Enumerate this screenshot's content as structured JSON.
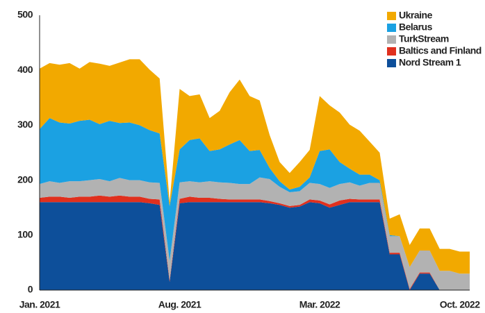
{
  "chart_data": {
    "type": "stacked_area",
    "categories": [
      "Jan. 2021",
      null,
      null,
      null,
      null,
      null,
      null,
      null,
      null,
      null,
      null,
      null,
      null,
      null,
      "Aug. 2021",
      null,
      null,
      null,
      null,
      null,
      null,
      null,
      null,
      null,
      null,
      null,
      null,
      null,
      "Mar. 2022",
      null,
      null,
      null,
      null,
      null,
      null,
      null,
      null,
      null,
      null,
      null,
      null,
      null,
      "Oct. 2022",
      null
    ],
    "series": [
      {
        "name": "Nord Stream 1",
        "color": "#0d4f9a",
        "values": [
          160,
          160,
          160,
          160,
          160,
          160,
          160,
          160,
          160,
          160,
          160,
          158,
          155,
          15,
          158,
          160,
          160,
          160,
          160,
          160,
          160,
          160,
          160,
          158,
          155,
          150,
          152,
          160,
          158,
          150,
          155,
          160,
          160,
          160,
          160,
          65,
          65,
          0,
          30,
          30,
          0,
          0,
          0,
          0
        ]
      },
      {
        "name": "Baltics and Finland",
        "color": "#e0301e",
        "values": [
          8,
          10,
          10,
          8,
          10,
          10,
          12,
          10,
          12,
          10,
          10,
          8,
          10,
          3,
          8,
          10,
          8,
          8,
          6,
          5,
          5,
          5,
          5,
          4,
          3,
          3,
          3,
          5,
          5,
          6,
          8,
          6,
          5,
          5,
          5,
          3,
          3,
          2,
          2,
          2,
          0,
          0,
          0,
          0
        ]
      },
      {
        "name": "TurkStream",
        "color": "#b2b2b2",
        "values": [
          25,
          28,
          25,
          30,
          28,
          30,
          30,
          28,
          32,
          30,
          30,
          30,
          30,
          35,
          30,
          28,
          28,
          30,
          30,
          30,
          28,
          28,
          40,
          40,
          30,
          25,
          25,
          30,
          30,
          30,
          30,
          30,
          25,
          30,
          30,
          30,
          30,
          40,
          40,
          40,
          35,
          35,
          30,
          30
        ]
      },
      {
        "name": "Belarus",
        "color": "#1ba1e2",
        "values": [
          100,
          115,
          110,
          105,
          110,
          110,
          100,
          110,
          100,
          105,
          100,
          95,
          90,
          100,
          60,
          75,
          80,
          55,
          60,
          70,
          80,
          60,
          50,
          20,
          10,
          5,
          8,
          10,
          60,
          70,
          40,
          25,
          20,
          15,
          5,
          2,
          0,
          0,
          0,
          0,
          0,
          0,
          0,
          0
        ]
      },
      {
        "name": "Ukraine",
        "color": "#f2a900",
        "values": [
          110,
          100,
          105,
          110,
          95,
          105,
          110,
          100,
          110,
          115,
          120,
          110,
          100,
          7,
          110,
          80,
          80,
          60,
          70,
          95,
          110,
          100,
          90,
          60,
          35,
          30,
          45,
          50,
          100,
          80,
          90,
          80,
          80,
          60,
          50,
          30,
          40,
          40,
          40,
          40,
          40,
          40,
          40,
          40
        ]
      }
    ],
    "ylim": [
      0,
      500
    ],
    "yticks": [
      0,
      100,
      200,
      300,
      400,
      500
    ],
    "grid": false,
    "legend": "top-right"
  }
}
